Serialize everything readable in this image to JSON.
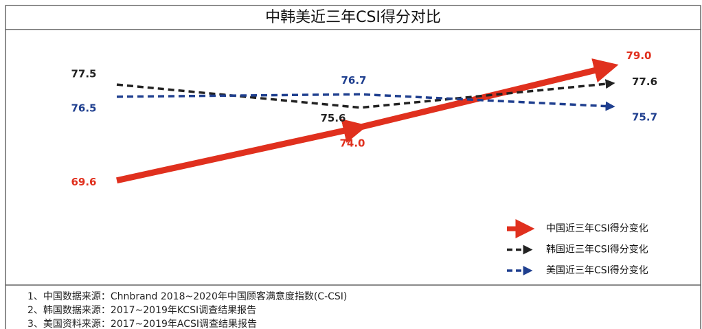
{
  "chart_data": {
    "type": "line",
    "title": "中韩美近三年CSI得分对比",
    "categories": [
      null,
      null,
      null
    ],
    "ylim": [
      68,
      80
    ],
    "legend": "bottom-right",
    "series": [
      {
        "name": "中国近三年CSI得分变化",
        "color": "#e0301e",
        "values": [
          69.6,
          74.0,
          79.0
        ],
        "value_labels": [
          "69.6",
          "74.0",
          "79.0"
        ]
      },
      {
        "name": "韩国近三年CSI得分变化",
        "color": "#222222",
        "values": [
          77.5,
          75.6,
          77.6
        ],
        "value_labels": [
          "77.5",
          "75.6",
          "77.6"
        ]
      },
      {
        "name": "美国近三年CSI得分变化",
        "color": "#1f3f8f",
        "values": [
          76.5,
          76.7,
          75.7
        ],
        "value_labels": [
          "76.5",
          "76.7",
          "75.7"
        ]
      }
    ],
    "notes": [
      "1、中国数据来源：Chnbrand 2018~2020年中国顾客满意度指数(C-CSI)",
      "2、韩国数据来源：2017~2019年KCSI调查结果报告",
      "3、美国资料来源：2017~2019年ACSI调查结果报告"
    ]
  }
}
